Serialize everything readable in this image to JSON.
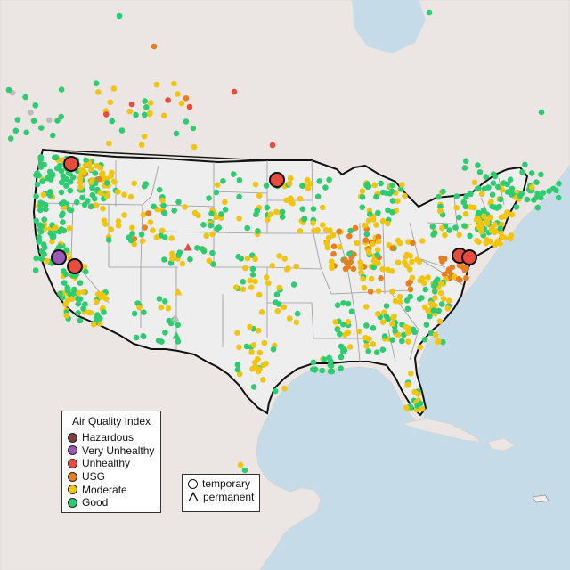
{
  "legend": {
    "title": "Air Quality Index",
    "categories": [
      {
        "label": "Hazardous",
        "color": "#7b3f3f"
      },
      {
        "label": "Very Unhealthy",
        "color": "#9b59b6"
      },
      {
        "label": "Unhealthy",
        "color": "#e74c3c"
      },
      {
        "label": "USG",
        "color": "#e67e22"
      },
      {
        "label": "Moderate",
        "color": "#f1c40f"
      },
      {
        "label": "Good",
        "color": "#2ecc71"
      }
    ],
    "types": [
      {
        "label": "temporary",
        "shape": "circle"
      },
      {
        "label": "permanent",
        "shape": "triangle"
      }
    ]
  },
  "colors": {
    "ocean": "#c6dbe8",
    "land": "#ebe6e3",
    "us_land": "#eeeeee",
    "border": "#111111",
    "state_line": "#9a9a9a",
    "unknown_marker": "#bdbdbd"
  }
}
